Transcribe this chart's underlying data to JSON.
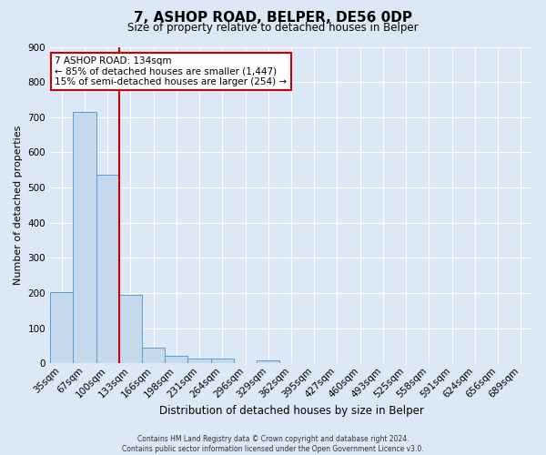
{
  "title": "7, ASHOP ROAD, BELPER, DE56 0DP",
  "subtitle": "Size of property relative to detached houses in Belper",
  "xlabel": "Distribution of detached houses by size in Belper",
  "ylabel": "Number of detached properties",
  "bar_labels": [
    "35sqm",
    "67sqm",
    "100sqm",
    "133sqm",
    "166sqm",
    "198sqm",
    "231sqm",
    "264sqm",
    "296sqm",
    "329sqm",
    "362sqm",
    "395sqm",
    "427sqm",
    "460sqm",
    "493sqm",
    "525sqm",
    "558sqm",
    "591sqm",
    "624sqm",
    "656sqm",
    "689sqm"
  ],
  "bar_values": [
    203,
    714,
    537,
    196,
    46,
    22,
    14,
    14,
    0,
    8,
    0,
    0,
    0,
    0,
    0,
    0,
    0,
    0,
    0,
    0,
    0
  ],
  "bar_color": "#c5d8ec",
  "bar_edge_color": "#5b9bd5",
  "ylim": [
    0,
    900
  ],
  "yticks": [
    0,
    100,
    200,
    300,
    400,
    500,
    600,
    700,
    800,
    900
  ],
  "property_line_x": 2.5,
  "annotation_title": "7 ASHOP ROAD: 134sqm",
  "annotation_line1": "← 85% of detached houses are smaller (1,447)",
  "annotation_line2": "15% of semi-detached houses are larger (254) →",
  "footer_line1": "Contains HM Land Registry data © Crown copyright and database right 2024.",
  "footer_line2": "Contains public sector information licensed under the Open Government Licence v3.0.",
  "background_color": "#dce8f5",
  "plot_bg_color": "#dce8f5",
  "grid_color": "#ffffff",
  "annotation_box_color": "#ffffff",
  "annotation_border_color": "#cc0000",
  "property_line_color": "#cc0000",
  "title_fontsize": 11,
  "subtitle_fontsize": 8.5,
  "ylabel_fontsize": 8,
  "xlabel_fontsize": 8.5,
  "tick_fontsize": 7.5,
  "ann_fontsize": 7.5,
  "footer_fontsize": 5.5
}
